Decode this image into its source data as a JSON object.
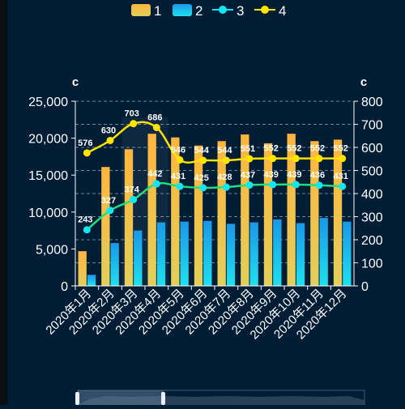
{
  "colors": {
    "background": "#001d36",
    "series1_top": "#ffb53d",
    "series1_bottom": "#e2cf5a",
    "series2_top": "#1a98e8",
    "series2_bottom": "#1fe0ee",
    "series3_line": "#1fe07c",
    "series3_point": "#13e6f0",
    "series4_line": "#ffe400",
    "grid": "#8fb6c8"
  },
  "chart_data": {
    "type": "bar",
    "title": "",
    "categories": [
      "2020年1月",
      "2020年2月",
      "2020年3月",
      "2020年4月",
      "2020年5月",
      "2020年6月",
      "2020年7月",
      "2020年8月",
      "2020年9月",
      "2020年10月",
      "2020年11月",
      "2020年12月"
    ],
    "y_left": {
      "name": "c",
      "min": 0,
      "max": 25000,
      "ticks": [
        "0",
        "5,000",
        "10,000",
        "15,000",
        "20,000",
        "25,000"
      ]
    },
    "y_right": {
      "name": "c",
      "min": 0,
      "max": 800,
      "ticks": [
        "0",
        "100",
        "200",
        "300",
        "400",
        "500",
        "600",
        "700",
        "800"
      ]
    },
    "legend_position": "top-center",
    "grid": true,
    "series": [
      {
        "name": "1",
        "type": "bar",
        "axis": "left",
        "values": [
          4700,
          16100,
          18500,
          20600,
          20100,
          19000,
          19600,
          20500,
          19300,
          20600,
          19600,
          19800
        ]
      },
      {
        "name": "2",
        "type": "bar",
        "axis": "left",
        "values": [
          1500,
          5800,
          7500,
          8600,
          8700,
          8800,
          8400,
          8600,
          9000,
          8500,
          9200,
          8700
        ]
      },
      {
        "name": "3",
        "type": "line",
        "axis": "right",
        "smooth": true,
        "values": [
          243,
          327,
          374,
          442,
          431,
          425,
          428,
          437,
          439,
          439,
          436,
          431
        ]
      },
      {
        "name": "4",
        "type": "line",
        "axis": "right",
        "smooth": true,
        "values": [
          576,
          630,
          703,
          686,
          546,
          544,
          544,
          551,
          552,
          552,
          552,
          552
        ]
      }
    ]
  }
}
